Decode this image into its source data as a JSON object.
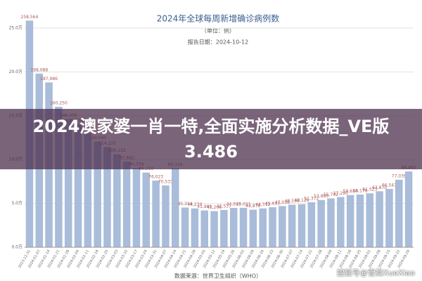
{
  "chart_data": {
    "type": "bar",
    "title": "2024年全球每周新增确诊病例数",
    "subtitle": "（单位：例）",
    "report_date": "报告日期：2024-10-12",
    "source": "数据来源：世界卫生组织（WHO）",
    "overlay_title": "2024澳家婆一肖一特,全面实施分析数据_VE版3.486",
    "watermark": "搜狐号@雪舞XueXiao",
    "color": "#a9bcd9",
    "label_color": "#b05a5a",
    "categories": [
      "2023-12-31",
      "2024-01-07",
      "2024-01-14",
      "2024-01-21",
      "2024-01-28",
      "2024-02-04",
      "2024-02-11",
      "2024-02-18",
      "2024-02-25",
      "2024-03-03",
      "2024-03-10",
      "2024-03-17",
      "2024-03-24",
      "2024-03-31",
      "2024-04-07",
      "2024-04-14",
      "2024-04-21",
      "2024-04-28",
      "2024-05-05",
      "2024-05-12",
      "2024-05-19",
      "2024-05-26",
      "2024-06-02",
      "2024-06-09",
      "2024-06-16",
      "2024-06-23",
      "2024-06-30",
      "2024-07-07",
      "2024-07-14",
      "2024-07-21",
      "2024-07-28",
      "2024-08-04",
      "2024-08-11",
      "2024-08-18",
      "2024-08-25",
      "2024-09-01",
      "2024-09-08",
      "2024-09-15",
      "2024-09-22",
      "2024-09-29"
    ],
    "values": [
      258564,
      198088,
      187986,
      160250,
      146300,
      140667,
      130329,
      120540,
      114233,
      106115,
      97842,
      90356,
      85210,
      76023,
      70533,
      90116,
      45314,
      44270,
      41980,
      41206,
      42537,
      44917,
      45021,
      42876,
      44312,
      45613,
      47018,
      48536,
      49126,
      51372,
      53880,
      55742,
      57290,
      59614,
      60178,
      61523,
      63870,
      66541,
      77039,
      86462
    ],
    "value_labels": [
      "258,564",
      "198,088",
      "187,986",
      "160,250",
      "146,300",
      "140,667",
      "130,329",
      "120,540",
      "114,233",
      "106,115",
      "97,842",
      "90,356",
      "85,210",
      "76,023",
      "70,533",
      "90,116",
      "45,314",
      "44,270",
      "41,980",
      "41,206",
      "42,537",
      "44,917",
      "45,021",
      "42,876",
      "44,312",
      "45,613",
      "47,018",
      "48,536",
      "49,126",
      "51,372",
      "53,880",
      "55,742",
      "57,290",
      "59,614",
      "60,178",
      "61,523",
      "63,870",
      "66,541",
      "77,039",
      "86,462"
    ],
    "ylim": [
      0,
      270000
    ],
    "yticks": [
      {
        "value": 0,
        "label": "0.0万"
      },
      {
        "value": 50000,
        "label": "5.0万"
      },
      {
        "value": 100000,
        "label": "10.0万"
      },
      {
        "value": 150000,
        "label": "15.0万"
      },
      {
        "value": 200000,
        "label": "20.0万"
      },
      {
        "value": 250000,
        "label": "25.0万"
      }
    ],
    "grid": true
  }
}
